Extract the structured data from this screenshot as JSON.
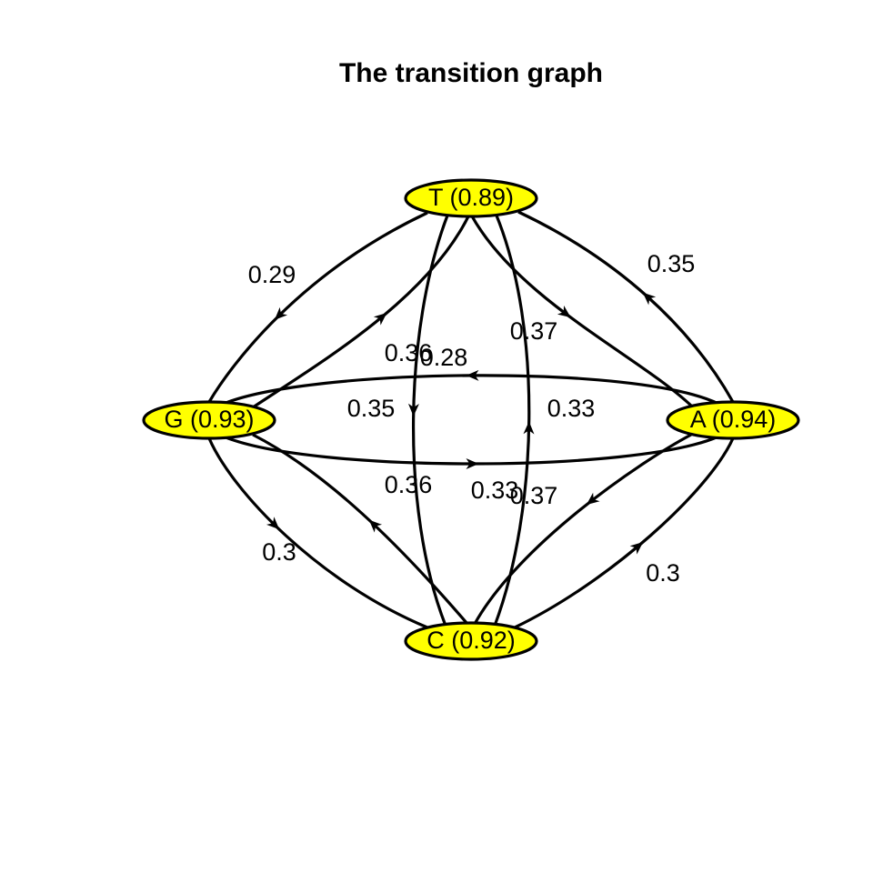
{
  "title": "The transition graph",
  "colors": {
    "node_fill": "#ffff00",
    "stroke": "#000000",
    "background": "#ffffff"
  },
  "nodes": {
    "T": {
      "label": "T (0.89)"
    },
    "A": {
      "label": "A (0.94)"
    },
    "G": {
      "label": "G (0.93)"
    },
    "C": {
      "label": "C (0.92)"
    }
  },
  "edges": [
    {
      "from": "T",
      "to": "G",
      "label": "0.29"
    },
    {
      "from": "A",
      "to": "T",
      "label": "0.35"
    },
    {
      "from": "G",
      "to": "T",
      "label": "0.36"
    },
    {
      "from": "T",
      "to": "A",
      "label": "0.37"
    },
    {
      "from": "A",
      "to": "G",
      "label": "0.28"
    },
    {
      "from": "T",
      "to": "C",
      "label": "0.35"
    },
    {
      "from": "C",
      "to": "T",
      "label": "0.33"
    },
    {
      "from": "G",
      "to": "A",
      "label": "0.33"
    },
    {
      "from": "C",
      "to": "G",
      "label": "0.36"
    },
    {
      "from": "A",
      "to": "C",
      "label": "0.37"
    },
    {
      "from": "G",
      "to": "C",
      "label": "0.3"
    },
    {
      "from": "C",
      "to": "A",
      "label": "0.3"
    }
  ]
}
